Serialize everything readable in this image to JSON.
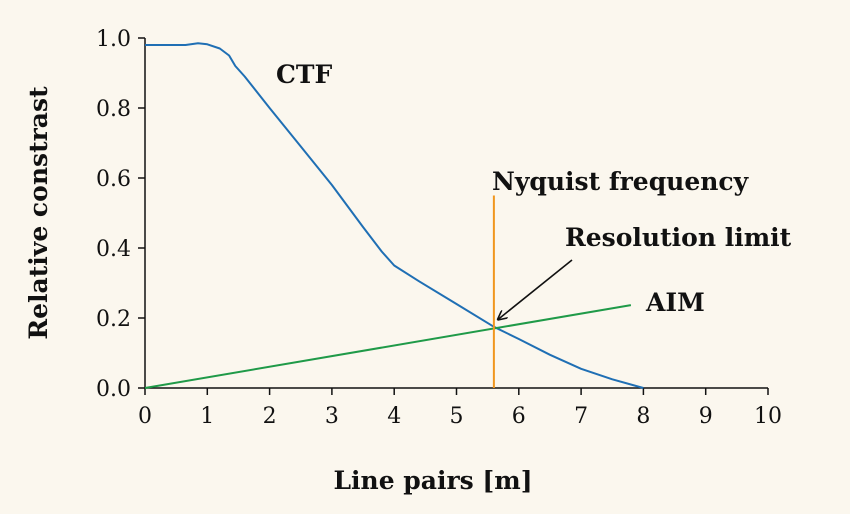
{
  "chart_data": {
    "type": "line",
    "title": "",
    "xlabel": "Line pairs [m]",
    "ylabel": "Relative constrast",
    "xlim": [
      0,
      10
    ],
    "ylim": [
      0,
      1.0
    ],
    "x_ticks": [
      "0",
      "1",
      "2",
      "3",
      "4",
      "5",
      "6",
      "7",
      "8",
      "9",
      "10"
    ],
    "y_ticks": [
      "0.0",
      "0.2",
      "0.4",
      "0.6",
      "0.8",
      "1.0"
    ],
    "grid": false,
    "series": [
      {
        "name": "CTF",
        "color": "#1f6fb4",
        "points": [
          [
            0.0,
            0.98
          ],
          [
            0.65,
            0.98
          ],
          [
            0.85,
            0.985
          ],
          [
            1.0,
            0.982
          ],
          [
            1.2,
            0.97
          ],
          [
            1.35,
            0.95
          ],
          [
            1.45,
            0.92
          ],
          [
            1.6,
            0.89
          ],
          [
            2.0,
            0.8
          ],
          [
            2.5,
            0.69
          ],
          [
            3.0,
            0.58
          ],
          [
            3.5,
            0.46
          ],
          [
            3.8,
            0.39
          ],
          [
            4.0,
            0.35
          ],
          [
            4.4,
            0.305
          ],
          [
            5.0,
            0.24
          ],
          [
            5.6,
            0.175
          ],
          [
            6.0,
            0.14
          ],
          [
            6.5,
            0.095
          ],
          [
            7.0,
            0.055
          ],
          [
            7.5,
            0.025
          ],
          [
            8.0,
            0.0
          ]
        ]
      },
      {
        "name": "AIM",
        "color": "#1f9a48",
        "points": [
          [
            0.0,
            0.0
          ],
          [
            7.8,
            0.237
          ]
        ]
      }
    ],
    "vertical_lines": [
      {
        "label": "Nyquist frequency",
        "x": 5.6,
        "y_range": [
          0.0,
          0.55
        ],
        "color": "#f0961e"
      }
    ],
    "annotations": [
      {
        "text": "Resolution limit",
        "arrow_to": [
          5.65,
          0.19
        ]
      }
    ]
  }
}
